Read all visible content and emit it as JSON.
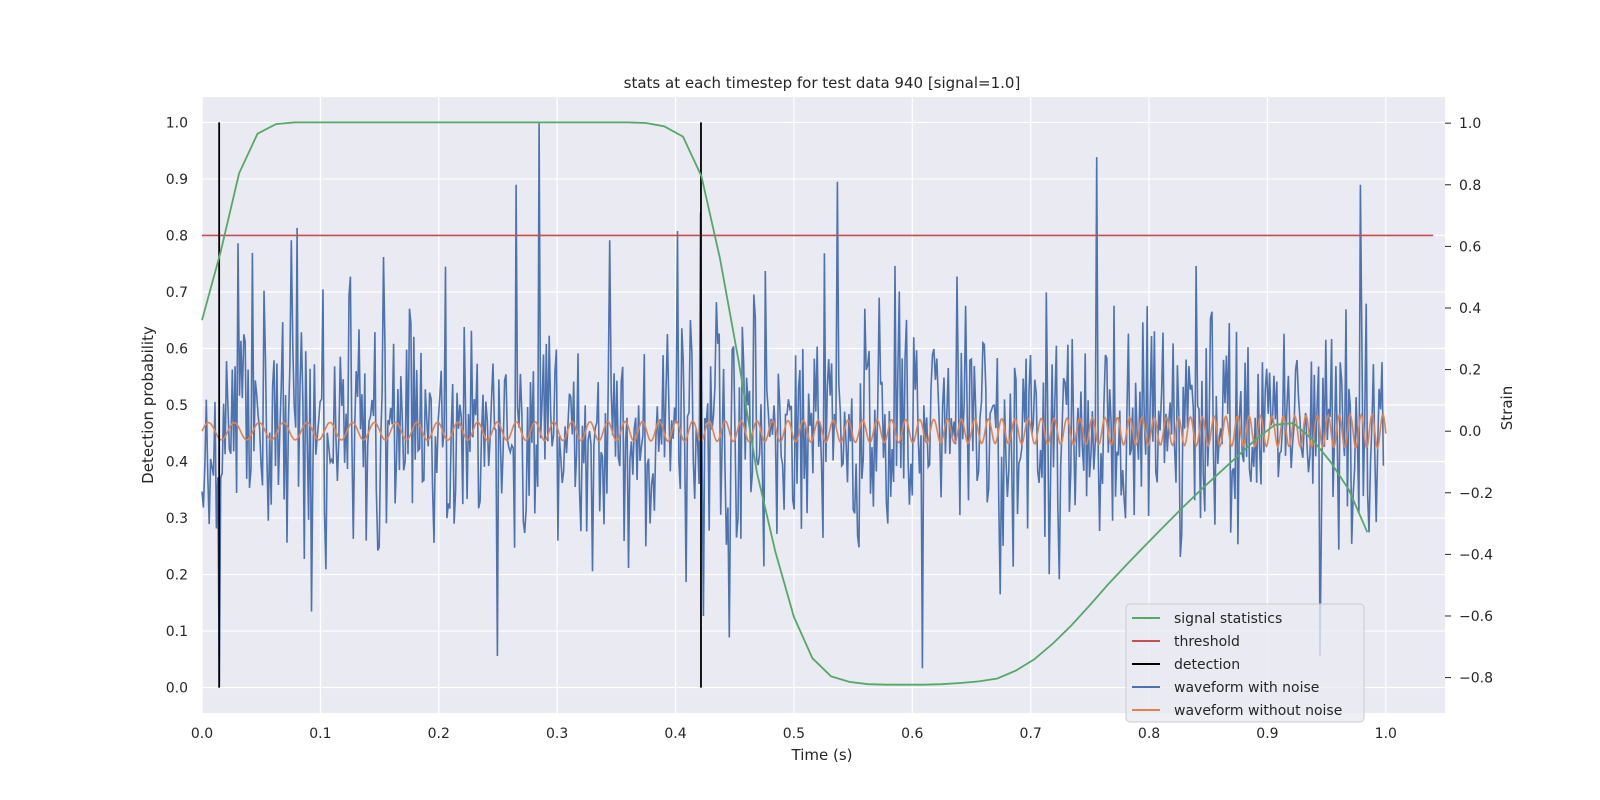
{
  "chart_data": {
    "type": "line",
    "title": "stats at each timestep for test data 940 [signal=1.0]",
    "xlabel": "Time (s)",
    "ylabel_left": "Detection probability",
    "ylabel_right": "Strain",
    "xlim": [
      0.0,
      1.05
    ],
    "ylim_left": [
      -0.045,
      1.045
    ],
    "ylim_right": [
      -0.915,
      1.085
    ],
    "x_ticks": [
      "0.0",
      "0.1",
      "0.2",
      "0.3",
      "0.4",
      "0.5",
      "0.6",
      "0.7",
      "0.8",
      "0.9",
      "1.0"
    ],
    "y_ticks_left": [
      "0.0",
      "0.1",
      "0.2",
      "0.3",
      "0.4",
      "0.5",
      "0.6",
      "0.7",
      "0.8",
      "0.9",
      "1.0"
    ],
    "y_ticks_right": [
      "−0.8",
      "−0.6",
      "−0.4",
      "−0.2",
      "0.0",
      "0.2",
      "0.4",
      "0.6",
      "0.8",
      "1.0"
    ],
    "grid": true,
    "legend_position": "bottom-right",
    "colors": {
      "background": "#eaeaf2",
      "grid": "#ffffff",
      "signal_statistics": "#55a868",
      "threshold": "#c44e52",
      "detection": "#000000",
      "waveform_with_noise": "#4c72b0",
      "waveform_without_noise": "#dd8452"
    },
    "series": [
      {
        "name": "signal statistics",
        "axis": "left",
        "x": [
          0.0,
          0.0156,
          0.0313,
          0.0469,
          0.0625,
          0.0781,
          0.0938,
          0.1094,
          0.125,
          0.1406,
          0.1563,
          0.1719,
          0.1875,
          0.2031,
          0.2188,
          0.2344,
          0.25,
          0.2656,
          0.2813,
          0.2969,
          0.3125,
          0.3281,
          0.3438,
          0.3594,
          0.375,
          0.3906,
          0.4063,
          0.4219,
          0.4375,
          0.4531,
          0.4688,
          0.4844,
          0.5,
          0.5156,
          0.5313,
          0.5469,
          0.5625,
          0.5781,
          0.5938,
          0.6094,
          0.625,
          0.6406,
          0.6563,
          0.6719,
          0.6875,
          0.7031,
          0.7188,
          0.7344,
          0.75,
          0.7656,
          0.7813,
          0.7969,
          0.8125,
          0.8281,
          0.8438,
          0.8594,
          0.875,
          0.8906,
          0.9063,
          0.9219,
          0.9375,
          0.9531,
          0.9688,
          0.9844
        ],
        "values": [
          0.65,
          0.77,
          0.91,
          0.98,
          0.997,
          1.0,
          1.0,
          1.0,
          1.0,
          1.0,
          1.0,
          1.0,
          1.0,
          1.0,
          1.0,
          1.0,
          1.0,
          1.0,
          1.0,
          1.0,
          1.0,
          1.0,
          1.0,
          1.0,
          0.999,
          0.993,
          0.975,
          0.905,
          0.76,
          0.58,
          0.38,
          0.24,
          0.125,
          0.052,
          0.02,
          0.01,
          0.006,
          0.005,
          0.005,
          0.005,
          0.006,
          0.008,
          0.011,
          0.016,
          0.03,
          0.05,
          0.078,
          0.11,
          0.146,
          0.183,
          0.218,
          0.252,
          0.285,
          0.318,
          0.35,
          0.38,
          0.41,
          0.44,
          0.465,
          0.468,
          0.44,
          0.4,
          0.35,
          0.275
        ]
      },
      {
        "name": "threshold",
        "axis": "left",
        "x": [
          0.0,
          1.04
        ],
        "values": [
          0.8,
          0.8
        ]
      },
      {
        "name": "detection",
        "axis": "left",
        "x": [
          0.0145,
          0.4215
        ],
        "values": [
          1.0,
          1.0
        ],
        "baseline": 0.0
      },
      {
        "name": "waveform with noise",
        "axis": "right",
        "x_start": 0.0,
        "x_end": 0.998,
        "noise_sigma": 0.2,
        "noise_seed": 940,
        "spikes": [
          [
            0.0147,
            -0.83
          ],
          [
            0.0309,
            0.61
          ],
          [
            0.0805,
            0.66
          ],
          [
            0.2489,
            -0.73
          ],
          [
            0.2849,
            1.0
          ],
          [
            0.2649,
            0.8
          ],
          [
            0.4017,
            0.65
          ],
          [
            0.4087,
            -0.49
          ],
          [
            0.4207,
            0.71
          ],
          [
            0.4232,
            -0.6
          ],
          [
            0.4457,
            -0.67
          ],
          [
            0.4756,
            0.52
          ],
          [
            0.5365,
            0.81
          ],
          [
            0.6087,
            -0.77
          ],
          [
            0.7558,
            0.89
          ],
          [
            0.9445,
            -0.73
          ],
          [
            0.9787,
            0.8
          ]
        ]
      },
      {
        "name": "waveform without noise",
        "axis": "right",
        "x_start": 0.0,
        "x_end": 1.0,
        "amplitude_start": 0.028,
        "amplitude_end": 0.055,
        "cycles_per_second_start": 45,
        "cycles_per_second_end": 110
      }
    ]
  }
}
